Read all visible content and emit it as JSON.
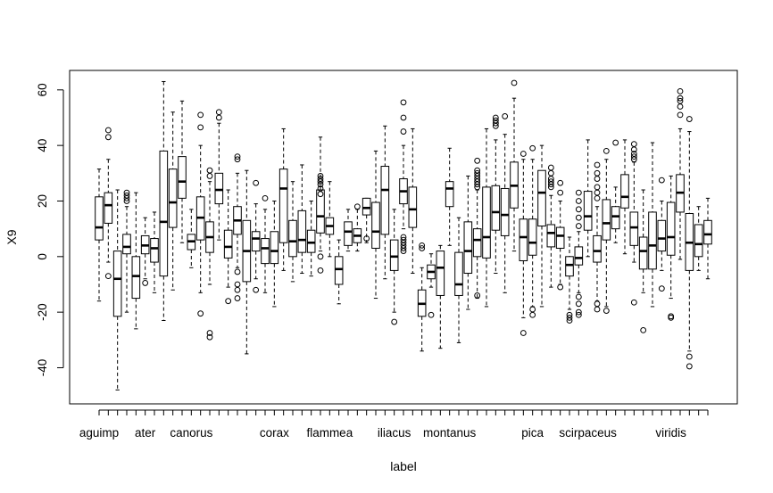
{
  "chart_data": {
    "type": "boxplot",
    "xlabel": "label",
    "ylabel": "X9",
    "ylim": [
      -53,
      67
    ],
    "y_ticks": [
      -40,
      -20,
      0,
      20,
      40,
      60
    ],
    "x_tick_labels": [
      {
        "index": 0,
        "text": "aguimp"
      },
      {
        "index": 5,
        "text": "ater"
      },
      {
        "index": 10,
        "text": "canorus"
      },
      {
        "index": 19,
        "text": "corax"
      },
      {
        "index": 25,
        "text": "flammea"
      },
      {
        "index": 32,
        "text": "iliacus"
      },
      {
        "index": 38,
        "text": "montanus"
      },
      {
        "index": 47,
        "text": "pica"
      },
      {
        "index": 53,
        "text": "scirpaceus"
      },
      {
        "index": 62,
        "text": "viridis"
      }
    ],
    "boxes": [
      {
        "wlo": -16,
        "q1": 6,
        "med": 10.5,
        "q3": 21.5,
        "whi": 31.5,
        "out": []
      },
      {
        "wlo": -2,
        "q1": 12,
        "med": 18.5,
        "q3": 23,
        "whi": 35,
        "out": [
          -7,
          43,
          45.5
        ]
      },
      {
        "wlo": -48,
        "q1": -21.5,
        "med": -8,
        "q3": 2,
        "whi": 24,
        "out": []
      },
      {
        "wlo": -20,
        "q1": 1,
        "med": 3.5,
        "q3": 8,
        "whi": 18,
        "out": [
          20,
          21,
          22,
          23
        ]
      },
      {
        "wlo": -26,
        "q1": -15,
        "med": -7,
        "q3": 0,
        "whi": 23,
        "out": []
      },
      {
        "wlo": -8,
        "q1": 1,
        "med": 4,
        "q3": 7.5,
        "whi": 14,
        "out": [
          -9.5
        ]
      },
      {
        "wlo": -13,
        "q1": -2,
        "med": 3,
        "q3": 6.5,
        "whi": 16,
        "out": []
      },
      {
        "wlo": -23,
        "q1": -7,
        "med": 12.5,
        "q3": 38,
        "whi": 63,
        "out": []
      },
      {
        "wlo": -12,
        "q1": 10.5,
        "med": 19.5,
        "q3": 31.5,
        "whi": 52,
        "out": []
      },
      {
        "wlo": 5,
        "q1": 21,
        "med": 27,
        "q3": 36,
        "whi": 56,
        "out": []
      },
      {
        "wlo": -4,
        "q1": 2.5,
        "med": 5.5,
        "q3": 8,
        "whi": 17,
        "out": []
      },
      {
        "wlo": -13,
        "q1": 6,
        "med": 14,
        "q3": 21.5,
        "whi": 40,
        "out": [
          -20.5,
          46.5,
          51
        ]
      },
      {
        "wlo": -10,
        "q1": 1.5,
        "med": 7,
        "q3": 12.5,
        "whi": 27,
        "out": [
          -29,
          -27.5,
          29,
          31
        ]
      },
      {
        "wlo": 6,
        "q1": 19,
        "med": 24,
        "q3": 30,
        "whi": 48,
        "out": [
          50,
          52
        ]
      },
      {
        "wlo": -11,
        "q1": -0.5,
        "med": 3.5,
        "q3": 9.5,
        "whi": 24,
        "out": [
          -16
        ]
      },
      {
        "wlo": -4,
        "q1": 8,
        "med": 13,
        "q3": 18,
        "whi": 30,
        "out": [
          -15,
          -12,
          -10,
          -5.5,
          35,
          36
        ]
      },
      {
        "wlo": -35,
        "q1": -9,
        "med": 2,
        "q3": 13,
        "whi": 31,
        "out": []
      },
      {
        "wlo": -8,
        "q1": 2,
        "med": 6.5,
        "q3": 9,
        "whi": 19,
        "out": [
          -12,
          26.5
        ]
      },
      {
        "wlo": -13,
        "q1": -2.5,
        "med": 3,
        "q3": 6.5,
        "whi": 17,
        "out": [
          21
        ]
      },
      {
        "wlo": -18,
        "q1": -2.5,
        "med": 2,
        "q3": 9,
        "whi": 20,
        "out": []
      },
      {
        "wlo": -5,
        "q1": 5,
        "med": 24.5,
        "q3": 31.5,
        "whi": 46,
        "out": []
      },
      {
        "wlo": -9,
        "q1": 0,
        "med": 5.5,
        "q3": 13,
        "whi": 27,
        "out": []
      },
      {
        "wlo": -6,
        "q1": 1.5,
        "med": 6,
        "q3": 16.5,
        "whi": 33,
        "out": []
      },
      {
        "wlo": -7,
        "q1": 1.5,
        "med": 5,
        "q3": 9.5,
        "whi": 20,
        "out": []
      },
      {
        "wlo": 2,
        "q1": 8.5,
        "med": 14.5,
        "q3": 24,
        "whi": 43,
        "out": [
          -5,
          0,
          22.5,
          24.5,
          26,
          27,
          28,
          29
        ]
      },
      {
        "wlo": 0,
        "q1": 8,
        "med": 11,
        "q3": 14,
        "whi": 27,
        "out": []
      },
      {
        "wlo": -17,
        "q1": -10,
        "med": -4.5,
        "q3": 0,
        "whi": 6,
        "out": []
      },
      {
        "wlo": 2,
        "q1": 4,
        "med": 9,
        "q3": 12.5,
        "whi": 17,
        "out": []
      },
      {
        "wlo": 2,
        "q1": 5,
        "med": 7.5,
        "q3": 10,
        "whi": 17,
        "out": [
          18
        ]
      },
      {
        "wlo": 5,
        "q1": 15,
        "med": 17.5,
        "q3": 21,
        "whi": 21,
        "out": [
          6.5
        ]
      },
      {
        "wlo": -15,
        "q1": 3,
        "med": 9,
        "q3": 19.5,
        "whi": 38,
        "out": []
      },
      {
        "wlo": -8,
        "q1": 8,
        "med": 24,
        "q3": 32.5,
        "whi": 47,
        "out": []
      },
      {
        "wlo": -20,
        "q1": -5,
        "med": 0,
        "q3": 6,
        "whi": 17,
        "out": [
          -23.5
        ]
      },
      {
        "wlo": 10,
        "q1": 19,
        "med": 23.5,
        "q3": 28,
        "whi": 40,
        "out": [
          2,
          3,
          4,
          5,
          6,
          7,
          45,
          50,
          55.5
        ]
      },
      {
        "wlo": -6,
        "q1": 10.5,
        "med": 17,
        "q3": 25,
        "whi": 46,
        "out": []
      },
      {
        "wlo": -34,
        "q1": -21.5,
        "med": -17,
        "q3": -12,
        "whi": -4,
        "out": [
          3,
          4
        ]
      },
      {
        "wlo": -11,
        "q1": -8,
        "med": -5.5,
        "q3": -3,
        "whi": 1,
        "out": [
          -21
        ]
      },
      {
        "wlo": -33,
        "q1": -14,
        "med": -4,
        "q3": 2,
        "whi": 4,
        "out": []
      },
      {
        "wlo": 4,
        "q1": 18,
        "med": 24.5,
        "q3": 27,
        "whi": 39,
        "out": []
      },
      {
        "wlo": -31,
        "q1": -14,
        "med": -10,
        "q3": 1.5,
        "whi": 14,
        "out": []
      },
      {
        "wlo": -19,
        "q1": -6,
        "med": 2,
        "q3": 12.5,
        "whi": 29,
        "out": []
      },
      {
        "wlo": -15,
        "q1": 0,
        "med": 6,
        "q3": 10,
        "whi": 24,
        "out": [
          -14,
          25,
          26,
          27,
          28,
          29,
          30,
          31,
          34.5
        ]
      },
      {
        "wlo": -18,
        "q1": -0.5,
        "med": 7,
        "q3": 25,
        "whi": 46,
        "out": []
      },
      {
        "wlo": -6,
        "q1": 9.5,
        "med": 16,
        "q3": 25.5,
        "whi": 42,
        "out": [
          47,
          48,
          49,
          50
        ]
      },
      {
        "wlo": -13,
        "q1": 7.5,
        "med": 15,
        "q3": 24.5,
        "whi": 44,
        "out": [
          50.5
        ]
      },
      {
        "wlo": 2,
        "q1": 17.5,
        "med": 25.5,
        "q3": 34,
        "whi": 57,
        "out": [
          62.5
        ]
      },
      {
        "wlo": -22,
        "q1": -1.5,
        "med": 7,
        "q3": 13.5,
        "whi": 35,
        "out": [
          -27.5,
          37
        ]
      },
      {
        "wlo": -18,
        "q1": 0.5,
        "med": 5,
        "q3": 13.5,
        "whi": 35,
        "out": [
          -21,
          -19,
          39
        ]
      },
      {
        "wlo": -18,
        "q1": 11,
        "med": 23,
        "q3": 31,
        "whi": 40,
        "out": []
      },
      {
        "wlo": -11,
        "q1": 3.5,
        "med": 8.5,
        "q3": 11.5,
        "whi": 22,
        "out": [
          25,
          26,
          27,
          28,
          30,
          32
        ]
      },
      {
        "wlo": -10,
        "q1": 3,
        "med": 7.5,
        "q3": 10.5,
        "whi": 20,
        "out": [
          -11,
          23,
          26.5
        ]
      },
      {
        "wlo": -19,
        "q1": -7,
        "med": -3,
        "q3": 0,
        "whi": 7,
        "out": [
          -21,
          -22,
          -23
        ]
      },
      {
        "wlo": -13,
        "q1": -3,
        "med": -0.5,
        "q3": 3.5,
        "whi": 9,
        "out": [
          -21,
          -20,
          -17,
          -14.5,
          11,
          14,
          17,
          20,
          23
        ]
      },
      {
        "wlo": 0,
        "q1": 9.5,
        "med": 14.5,
        "q3": 23.5,
        "whi": 42,
        "out": []
      },
      {
        "wlo": -16,
        "q1": -2,
        "med": 2,
        "q3": 7.5,
        "whi": 18,
        "out": [
          -19,
          -17,
          21,
          23,
          25,
          28,
          30,
          33
        ]
      },
      {
        "wlo": -18,
        "q1": 6,
        "med": 12,
        "q3": 20.5,
        "whi": 35,
        "out": [
          -19.5,
          38
        ]
      },
      {
        "wlo": 5,
        "q1": 10,
        "med": 14.5,
        "q3": 18,
        "whi": 25,
        "out": [
          41
        ]
      },
      {
        "wlo": 1,
        "q1": 17.5,
        "med": 21.5,
        "q3": 29.5,
        "whi": 42,
        "out": []
      },
      {
        "wlo": -2,
        "q1": 4,
        "med": 10.5,
        "q3": 16,
        "whi": 34,
        "out": [
          -16.5,
          35,
          36,
          37,
          38.5,
          40.5
        ]
      },
      {
        "wlo": -13,
        "q1": -4.5,
        "med": 2,
        "q3": 7,
        "whi": 24,
        "out": [
          -26.5
        ]
      },
      {
        "wlo": -18,
        "q1": -4.5,
        "med": 4,
        "q3": 16,
        "whi": 41,
        "out": []
      },
      {
        "wlo": -5,
        "q1": 2,
        "med": 6.5,
        "q3": 13,
        "whi": 20,
        "out": [
          -11.5,
          27.5
        ]
      },
      {
        "wlo": -15,
        "q1": 0.5,
        "med": 7,
        "q3": 19.5,
        "whi": 29,
        "out": [
          -21.5,
          -22
        ]
      },
      {
        "wlo": -1,
        "q1": 16,
        "med": 23,
        "q3": 29.5,
        "whi": 46,
        "out": [
          51,
          54,
          56,
          57,
          59.5
        ]
      },
      {
        "wlo": -34,
        "q1": -5,
        "med": 5,
        "q3": 15.5,
        "whi": 45,
        "out": [
          -39.5,
          -36,
          49.5
        ]
      },
      {
        "wlo": -5,
        "q1": 0,
        "med": 4.5,
        "q3": 11.5,
        "whi": 18,
        "out": []
      },
      {
        "wlo": -8,
        "q1": 4.5,
        "med": 8,
        "q3": 13,
        "whi": 21,
        "out": []
      }
    ]
  }
}
